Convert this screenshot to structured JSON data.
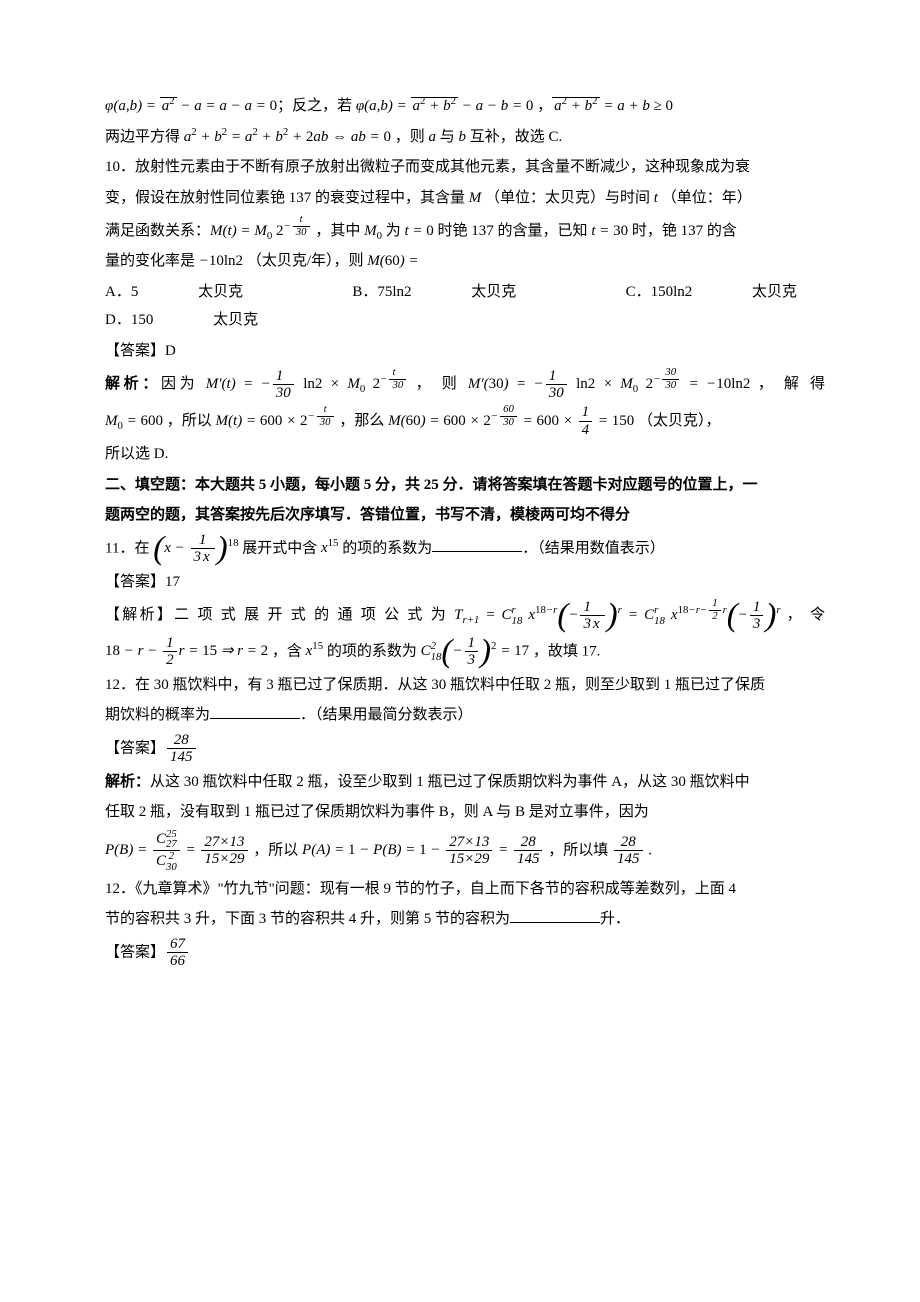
{
  "q9_tail": {
    "eq1_lhs": "φ(a,b) = √(a²) − a = a − a = 0",
    "conj": "；反之，若 ",
    "eq2": "φ(a,b) = √(a² + b²) − a − b = 0",
    "eq3": "√(a² + b²) = a + b ≥ 0",
    "line2_pre": "两边平方得 ",
    "line2_eq": "a² + b² = a² + b² + 2ab ⇔ ab = 0",
    "line2_post": "，则 a 与 b 互补，故选 C."
  },
  "q10": {
    "stem_l1": "10．放射性元素由于不断有原子放射出微粒子而变成其他元素，其含量不断减少，这种现象成为衰",
    "stem_l2": "变，假设在放射性同位素铯 137 的衰变过程中，其含量 M （单位：太贝克）与时间 t （单位：年）",
    "stem_l3a": "满足函数关系：",
    "func": "M(t) = M₀ 2^{−t/30}",
    "stem_l3b": "，其中 M₀ 为 t = 0 时铯 137 的含量，已知 t = 30 时，铯 137 的含",
    "stem_l4a": "量的变化率是 −10ln2 （太贝克/年），则 M(60) =",
    "options": {
      "A": "A．5 太贝克",
      "B": "B．75ln2 太贝克",
      "C": "C．150ln2 太贝克",
      "D": "D．150 太贝克"
    },
    "answer": "【答案】D",
    "sol_label": "解析：",
    "sol_l1a": "因为 ",
    "sol_eq1": "M′(t) = −(1/30) ln2 × M₀ 2^{−t/30}",
    "sol_l1b": "，则 ",
    "sol_eq2": "M′(30) = −(1/30) ln2 × M₀ 2^{−30/30} = −10ln2",
    "sol_l1c": "，解得",
    "sol_l2a": "M₀ = 600",
    "sol_l2b": "，所以 ",
    "sol_eq3": "M(t) = 600 × 2^{−t/30}",
    "sol_l2c": "，那么 ",
    "sol_eq4": "M(60) = 600 × 2^{−60/30} = 600 × 1/4 = 150",
    "sol_l2d": " （太贝克），",
    "sol_l3": "所以选 D."
  },
  "section2": {
    "title_l1": "二、填空题：本大题共 5 小题，每小题 5 分，共 25 分．请将答案填在答题卡对应题号的位置上，一",
    "title_l2": "题两空的题，其答案按先后次序填写．答错位置，书写不清，模棱两可均不得分"
  },
  "q11": {
    "pre": "11．在 ",
    "expr": "(x − 1/(3√x))^{18}",
    "mid": " 展开式中含 x^{15} 的项的系数为",
    "post": "．（结果用数值表示）",
    "answer": "【答案】17",
    "sol_label": "【解析】",
    "sol_l1a": "二项式展开式的通项公式为 ",
    "sol_eq1": "T_{r+1} = C_{18}^r x^{18−r} (−1/(3√x))^r = C_{18}^r x^{18−r−½r} (−1/3)^r",
    "sol_l1b": "，令",
    "sol_l2a": "18 − r − ½r = 15 ⇒ r = 2",
    "sol_l2b": "，含 x^{15} 的项的系数为 ",
    "sol_eq2": "C_{18}^2 (−1/3)^2 = 17",
    "sol_l2c": "，故填 17."
  },
  "q12a": {
    "stem_l1": "12．在 30 瓶饮料中，有 3 瓶已过了保质期．从这 30 瓶饮料中任取 2 瓶，则至少取到 1 瓶已过了保质",
    "stem_l2a": "期饮料的概率为",
    "stem_l2b": "．（结果用最简分数表示）",
    "answer_label": "【答案】",
    "answer_num": "28",
    "answer_den": "145",
    "sol_label": "解析：",
    "sol_l1": "从这 30 瓶饮料中任取 2 瓶，设至少取到 1 瓶已过了保质期饮料为事件 A，从这 30 瓶饮料中",
    "sol_l2": "任取 2 瓶，没有取到 1 瓶已过了保质期饮料为事件 B，则 A 与 B 是对立事件，因为",
    "sol_eq1": "P(B) = C_{27}^{25} / C_{30}^{2} = (27×13)/(15×29)",
    "sol_l3a": "，所以 ",
    "sol_eq2": "P(A) = 1 − P(B) = 1 − (27×13)/(15×29) = 28/145",
    "sol_l3b": "，所以填 ",
    "sol_eq3_num": "28",
    "sol_eq3_den": "145",
    "sol_l3c": "."
  },
  "q12b": {
    "stem_l1": "12．《九章算术》\"竹九节\"问题：现有一根 9 节的竹子，自上而下各节的容积成等差数列，上面 4",
    "stem_l2a": "节的容积共 3 升，下面 3 节的容积共 4 升，则第 5 节的容积为",
    "stem_l2b": "升．",
    "answer_label": "【答案】",
    "answer_num": "67",
    "answer_den": "66"
  }
}
